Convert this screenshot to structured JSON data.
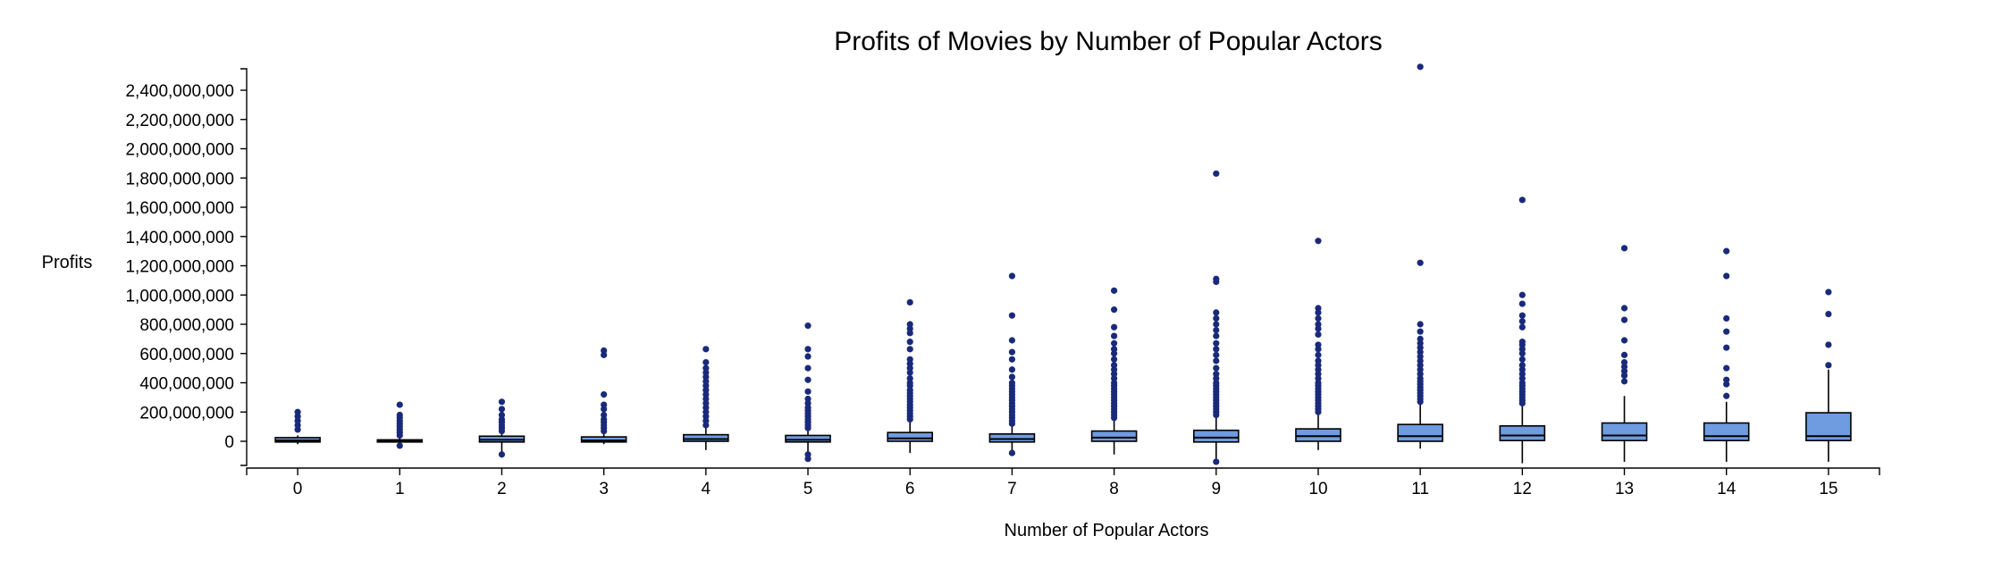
{
  "chart_data": {
    "type": "boxplot",
    "title": "Profits of Movies by Number of Popular Actors",
    "xlabel": "Number of Popular Actors",
    "ylabel": "Profits",
    "ylim": [
      -170000000,
      2550000000
    ],
    "y_ticks": [
      0,
      200000000,
      400000000,
      600000000,
      800000000,
      1000000000,
      1200000000,
      1400000000,
      1600000000,
      1800000000,
      2000000000,
      2200000000,
      2400000000
    ],
    "y_tick_labels": [
      "0",
      "200,000,000",
      "400,000,000",
      "600,000,000",
      "800,000,000",
      "1,000,000,000",
      "1,200,000,000",
      "1,400,000,000",
      "1,600,000,000",
      "1,800,000,000",
      "2,000,000,000",
      "2,200,000,000",
      "2,400,000,000"
    ],
    "categories": [
      "0",
      "1",
      "2",
      "3",
      "4",
      "5",
      "6",
      "7",
      "8",
      "9",
      "10",
      "11",
      "12",
      "13",
      "14",
      "15"
    ],
    "grid": false,
    "colors": {
      "box_fill": "#6f9be0",
      "outlier": "#1a2a7a",
      "axis": "#000000"
    },
    "boxes": [
      {
        "category": "0",
        "whisker_low": -20000000,
        "q1": -5000000,
        "median": 5000000,
        "q3": 25000000,
        "whisker_high": 40000000,
        "outliers": [
          80000000,
          110000000,
          140000000,
          170000000,
          200000000
        ]
      },
      {
        "category": "1",
        "whisker_low": -30000000,
        "q1": -5000000,
        "median": 0,
        "q3": 10000000,
        "whisker_high": 20000000,
        "outliers": [
          -30000000,
          40000000,
          60000000,
          80000000,
          100000000,
          120000000,
          140000000,
          160000000,
          180000000,
          250000000
        ]
      },
      {
        "category": "2",
        "whisker_low": -90000000,
        "q1": -5000000,
        "median": 10000000,
        "q3": 35000000,
        "whisker_high": 60000000,
        "outliers": [
          -90000000,
          70000000,
          90000000,
          110000000,
          130000000,
          150000000,
          180000000,
          220000000,
          270000000
        ]
      },
      {
        "category": "3",
        "whisker_low": -20000000,
        "q1": -5000000,
        "median": 5000000,
        "q3": 30000000,
        "whisker_high": 60000000,
        "outliers": [
          70000000,
          90000000,
          110000000,
          130000000,
          150000000,
          180000000,
          220000000,
          250000000,
          320000000,
          590000000,
          620000000
        ]
      },
      {
        "category": "4",
        "whisker_low": -60000000,
        "q1": 0,
        "median": 15000000,
        "q3": 45000000,
        "whisker_high": 100000000,
        "outliers": [
          110000000,
          140000000,
          170000000,
          200000000,
          230000000,
          260000000,
          290000000,
          320000000,
          350000000,
          380000000,
          410000000,
          440000000,
          470000000,
          500000000,
          540000000,
          630000000
        ]
      },
      {
        "category": "5",
        "whisker_low": -90000000,
        "q1": -5000000,
        "median": 10000000,
        "q3": 40000000,
        "whisker_high": 80000000,
        "outliers": [
          -90000000,
          -120000000,
          90000000,
          110000000,
          130000000,
          150000000,
          170000000,
          190000000,
          210000000,
          230000000,
          260000000,
          290000000,
          340000000,
          420000000,
          500000000,
          580000000,
          630000000,
          790000000
        ]
      },
      {
        "category": "6",
        "whisker_low": -80000000,
        "q1": 0,
        "median": 20000000,
        "q3": 60000000,
        "whisker_high": 130000000,
        "outliers": [
          150000000,
          170000000,
          190000000,
          210000000,
          230000000,
          250000000,
          270000000,
          290000000,
          310000000,
          330000000,
          350000000,
          380000000,
          400000000,
          430000000,
          470000000,
          500000000,
          530000000,
          560000000,
          630000000,
          680000000,
          740000000,
          770000000,
          800000000,
          950000000
        ]
      },
      {
        "category": "7",
        "whisker_low": -80000000,
        "q1": -5000000,
        "median": 15000000,
        "q3": 50000000,
        "whisker_high": 110000000,
        "outliers": [
          -80000000,
          120000000,
          140000000,
          160000000,
          180000000,
          200000000,
          220000000,
          240000000,
          260000000,
          280000000,
          300000000,
          320000000,
          340000000,
          360000000,
          380000000,
          400000000,
          440000000,
          490000000,
          560000000,
          610000000,
          690000000,
          860000000,
          1130000000
        ]
      },
      {
        "category": "8",
        "whisker_low": -90000000,
        "q1": 0,
        "median": 25000000,
        "q3": 70000000,
        "whisker_high": 150000000,
        "outliers": [
          160000000,
          180000000,
          200000000,
          220000000,
          240000000,
          260000000,
          280000000,
          300000000,
          320000000,
          340000000,
          360000000,
          380000000,
          400000000,
          430000000,
          460000000,
          490000000,
          520000000,
          560000000,
          600000000,
          630000000,
          670000000,
          720000000,
          780000000,
          900000000,
          1030000000
        ]
      },
      {
        "category": "9",
        "whisker_low": -140000000,
        "q1": -5000000,
        "median": 25000000,
        "q3": 75000000,
        "whisker_high": 170000000,
        "outliers": [
          -140000000,
          180000000,
          200000000,
          220000000,
          240000000,
          260000000,
          280000000,
          300000000,
          320000000,
          340000000,
          360000000,
          380000000,
          400000000,
          430000000,
          460000000,
          500000000,
          550000000,
          590000000,
          630000000,
          670000000,
          720000000,
          760000000,
          800000000,
          840000000,
          880000000,
          1090000000,
          1110000000,
          1830000000
        ]
      },
      {
        "category": "10",
        "whisker_low": -60000000,
        "q1": 0,
        "median": 35000000,
        "q3": 85000000,
        "whisker_high": 190000000,
        "outliers": [
          200000000,
          220000000,
          240000000,
          260000000,
          280000000,
          300000000,
          320000000,
          340000000,
          360000000,
          380000000,
          400000000,
          430000000,
          460000000,
          490000000,
          520000000,
          550000000,
          590000000,
          630000000,
          660000000,
          730000000,
          770000000,
          800000000,
          840000000,
          880000000,
          910000000,
          1370000000
        ]
      },
      {
        "category": "11",
        "whisker_low": -50000000,
        "q1": 0,
        "median": 35000000,
        "q3": 115000000,
        "whisker_high": 260000000,
        "outliers": [
          270000000,
          290000000,
          310000000,
          330000000,
          350000000,
          370000000,
          390000000,
          410000000,
          430000000,
          460000000,
          490000000,
          520000000,
          550000000,
          580000000,
          610000000,
          640000000,
          670000000,
          700000000,
          750000000,
          800000000,
          1220000000,
          2560000000
        ]
      },
      {
        "category": "12",
        "whisker_low": -150000000,
        "q1": 5000000,
        "median": 40000000,
        "q3": 105000000,
        "whisker_high": 250000000,
        "outliers": [
          260000000,
          280000000,
          300000000,
          320000000,
          340000000,
          360000000,
          380000000,
          400000000,
          430000000,
          460000000,
          490000000,
          520000000,
          560000000,
          600000000,
          630000000,
          660000000,
          680000000,
          780000000,
          820000000,
          860000000,
          940000000,
          1000000000,
          1650000000
        ]
      },
      {
        "category": "13",
        "whisker_low": -140000000,
        "q1": 5000000,
        "median": 40000000,
        "q3": 125000000,
        "whisker_high": 310000000,
        "outliers": [
          410000000,
          450000000,
          480000000,
          510000000,
          540000000,
          590000000,
          690000000,
          830000000,
          910000000,
          1320000000
        ]
      },
      {
        "category": "14",
        "whisker_low": -140000000,
        "q1": 5000000,
        "median": 35000000,
        "q3": 125000000,
        "whisker_high": 270000000,
        "outliers": [
          310000000,
          390000000,
          420000000,
          500000000,
          640000000,
          750000000,
          840000000,
          1130000000,
          1300000000
        ]
      },
      {
        "category": "15",
        "whisker_low": -140000000,
        "q1": 5000000,
        "median": 35000000,
        "q3": 195000000,
        "whisker_high": 490000000,
        "outliers": [
          520000000,
          660000000,
          870000000,
          1020000000
        ]
      }
    ]
  }
}
